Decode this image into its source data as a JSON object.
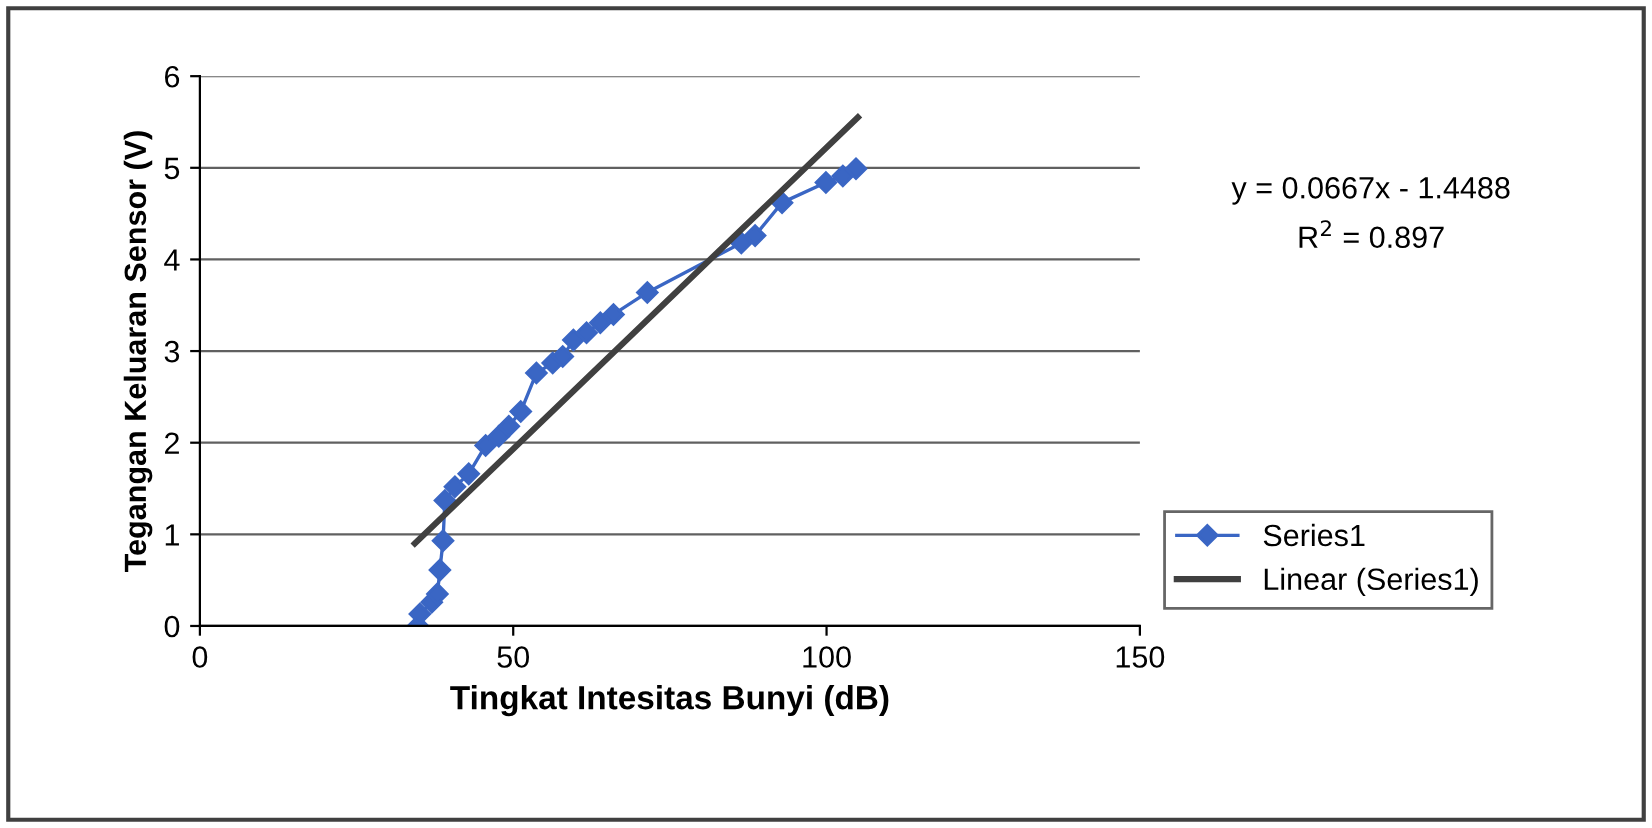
{
  "chart_data": {
    "type": "line",
    "xlabel": "Tingkat Intesitas Bunyi (dB)",
    "ylabel": "Tegangan Keluaran Sensor (V)",
    "series": [
      {
        "name": "Series1",
        "color": "#3a66c4",
        "marker": "diamond",
        "x": [
          34.8,
          35.1,
          37.0,
          37.9,
          38.3,
          38.8,
          39.1,
          40.7,
          42.9,
          45.6,
          47.7,
          49.3,
          51.2,
          53.7,
          56.3,
          57.9,
          59.6,
          61.7,
          63.9,
          66.0,
          71.4,
          86.4,
          88.6,
          92.9,
          99.9,
          102.6,
          104.7
        ],
        "values": [
          0,
          0.13,
          0.26,
          0.35,
          0.61,
          0.93,
          1.37,
          1.52,
          1.66,
          1.97,
          2.07,
          2.18,
          2.34,
          2.76,
          2.87,
          2.94,
          3.12,
          3.2,
          3.31,
          3.4,
          3.64,
          4.18,
          4.26,
          4.62,
          4.84,
          4.91,
          4.99
        ]
      },
      {
        "name": "Linear (Series1)",
        "color": "#404040",
        "marker": "none",
        "x": [
          34.3,
          105
        ],
        "values": [
          0.9,
          5.55
        ]
      }
    ],
    "xlim": [
      0,
      150
    ],
    "xticks": [
      0,
      50,
      100,
      150
    ],
    "ylim": [
      0,
      6
    ],
    "yticks": [
      0,
      1,
      2,
      3,
      4,
      5,
      6
    ],
    "grid": "y",
    "legend": "right",
    "annotations": [
      "y = 0.0667x - 1.4488",
      "R$^{2}$ = 0.897"
    ]
  }
}
